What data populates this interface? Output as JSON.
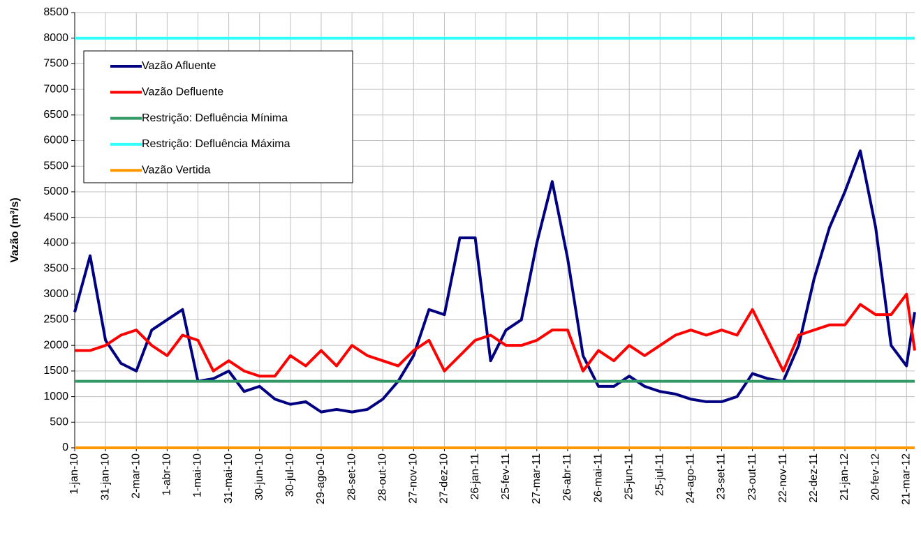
{
  "chart_data": {
    "type": "line",
    "y_label": "Vazão (m³/s)",
    "x": [
      "2010-01-01",
      "2010-01-16",
      "2010-01-31",
      "2010-02-15",
      "2010-03-02",
      "2010-03-17",
      "2010-04-01",
      "2010-04-16",
      "2010-05-01",
      "2010-05-16",
      "2010-05-31",
      "2010-06-15",
      "2010-06-30",
      "2010-07-15",
      "2010-07-30",
      "2010-08-14",
      "2010-08-29",
      "2010-09-13",
      "2010-09-28",
      "2010-10-13",
      "2010-10-28",
      "2010-11-12",
      "2010-11-27",
      "2010-12-12",
      "2010-12-27",
      "2011-01-11",
      "2011-01-26",
      "2011-02-10",
      "2011-02-25",
      "2011-03-12",
      "2011-03-27",
      "2011-04-11",
      "2011-04-26",
      "2011-05-11",
      "2011-05-26",
      "2011-06-10",
      "2011-06-25",
      "2011-07-10",
      "2011-07-25",
      "2011-08-09",
      "2011-08-24",
      "2011-09-08",
      "2011-09-23",
      "2011-10-08",
      "2011-10-23",
      "2011-11-07",
      "2011-11-22",
      "2011-12-07",
      "2011-12-22",
      "2012-01-06",
      "2012-01-21",
      "2012-02-05",
      "2012-02-20",
      "2012-03-06",
      "2012-03-21",
      "2012-03-29"
    ],
    "series": [
      {
        "name": "Vazão Afluente",
        "color": "#000080",
        "values": [
          2650,
          3750,
          2100,
          1650,
          1500,
          2300,
          2500,
          2700,
          1300,
          1350,
          1500,
          1100,
          1200,
          950,
          850,
          900,
          700,
          750,
          700,
          750,
          950,
          1300,
          1800,
          2700,
          2600,
          4100,
          4100,
          1700,
          2300,
          2500,
          4000,
          5200,
          3700,
          1800,
          1200,
          1200,
          1400,
          1200,
          1100,
          1050,
          950,
          900,
          900,
          1000,
          1450,
          1350,
          1300,
          2000,
          3300,
          4300,
          5000,
          5800,
          4300,
          2000,
          1600,
          2650
        ]
      },
      {
        "name": "Vazão Defluente",
        "color": "#ff0000",
        "values": [
          1900,
          1900,
          2000,
          2200,
          2300,
          2000,
          1800,
          2200,
          2100,
          1500,
          1700,
          1500,
          1400,
          1400,
          1800,
          1600,
          1900,
          1600,
          2000,
          1800,
          1700,
          1600,
          1900,
          2100,
          1500,
          1800,
          2100,
          2200,
          2000,
          2000,
          2100,
          2300,
          2300,
          1500,
          1900,
          1700,
          2000,
          1800,
          2000,
          2200,
          2300,
          2200,
          2300,
          2200,
          2700,
          2100,
          1500,
          2200,
          2300,
          2400,
          2400,
          2800,
          2600,
          2600,
          3000,
          1900
        ]
      },
      {
        "name": "Restrição: Defluência Mínima",
        "color": "#339966",
        "x": [
          "2010-01-01",
          "2012-03-29"
        ],
        "values": [
          1300,
          1300
        ]
      },
      {
        "name": "Restrição: Defluência Máxima",
        "color": "#33ffff",
        "x": [
          "2010-01-01",
          "2012-03-29"
        ],
        "values": [
          8000,
          8000
        ]
      },
      {
        "name": "Vazão Vertida",
        "color": "#ff9900",
        "x": [
          "2010-01-01",
          "2012-03-29"
        ],
        "values": [
          0,
          0
        ]
      }
    ],
    "xlim": [
      "2010-01-01",
      "2012-03-29"
    ],
    "xticks": [
      {
        "value": "2010-01-01",
        "label": "1-jan-10"
      },
      {
        "value": "2010-01-31",
        "label": "31-jan-10"
      },
      {
        "value": "2010-03-02",
        "label": "2-mar-10"
      },
      {
        "value": "2010-04-01",
        "label": "1-abr-10"
      },
      {
        "value": "2010-05-01",
        "label": "1-mai-10"
      },
      {
        "value": "2010-05-31",
        "label": "31-mai-10"
      },
      {
        "value": "2010-06-30",
        "label": "30-jun-10"
      },
      {
        "value": "2010-07-30",
        "label": "30-jul-10"
      },
      {
        "value": "2010-08-29",
        "label": "29-ago-10"
      },
      {
        "value": "2010-09-28",
        "label": "28-set-10"
      },
      {
        "value": "2010-10-28",
        "label": "28-out-10"
      },
      {
        "value": "2010-11-27",
        "label": "27-nov-10"
      },
      {
        "value": "2010-12-27",
        "label": "27-dez-10"
      },
      {
        "value": "2011-01-26",
        "label": "26-jan-11"
      },
      {
        "value": "2011-02-25",
        "label": "25-fev-11"
      },
      {
        "value": "2011-03-27",
        "label": "27-mar-11"
      },
      {
        "value": "2011-04-26",
        "label": "26-abr-11"
      },
      {
        "value": "2011-05-26",
        "label": "26-mai-11"
      },
      {
        "value": "2011-06-25",
        "label": "25-jun-11"
      },
      {
        "value": "2011-07-25",
        "label": "25-jul-11"
      },
      {
        "value": "2011-08-24",
        "label": "24-ago-11"
      },
      {
        "value": "2011-09-23",
        "label": "23-set-11"
      },
      {
        "value": "2011-10-23",
        "label": "23-out-11"
      },
      {
        "value": "2011-11-22",
        "label": "22-nov-11"
      },
      {
        "value": "2011-12-22",
        "label": "22-dez-11"
      },
      {
        "value": "2012-01-21",
        "label": "21-jan-12"
      },
      {
        "value": "2012-02-20",
        "label": "20-fev-12"
      },
      {
        "value": "2012-03-21",
        "label": "21-mar-12"
      }
    ],
    "ylim": [
      0,
      8500
    ],
    "yticks": [
      0,
      500,
      1000,
      1500,
      2000,
      2500,
      3000,
      3500,
      4000,
      4500,
      5000,
      5500,
      6000,
      6500,
      7000,
      7500,
      8000,
      8500
    ],
    "grid": true,
    "legend": "upper left"
  }
}
